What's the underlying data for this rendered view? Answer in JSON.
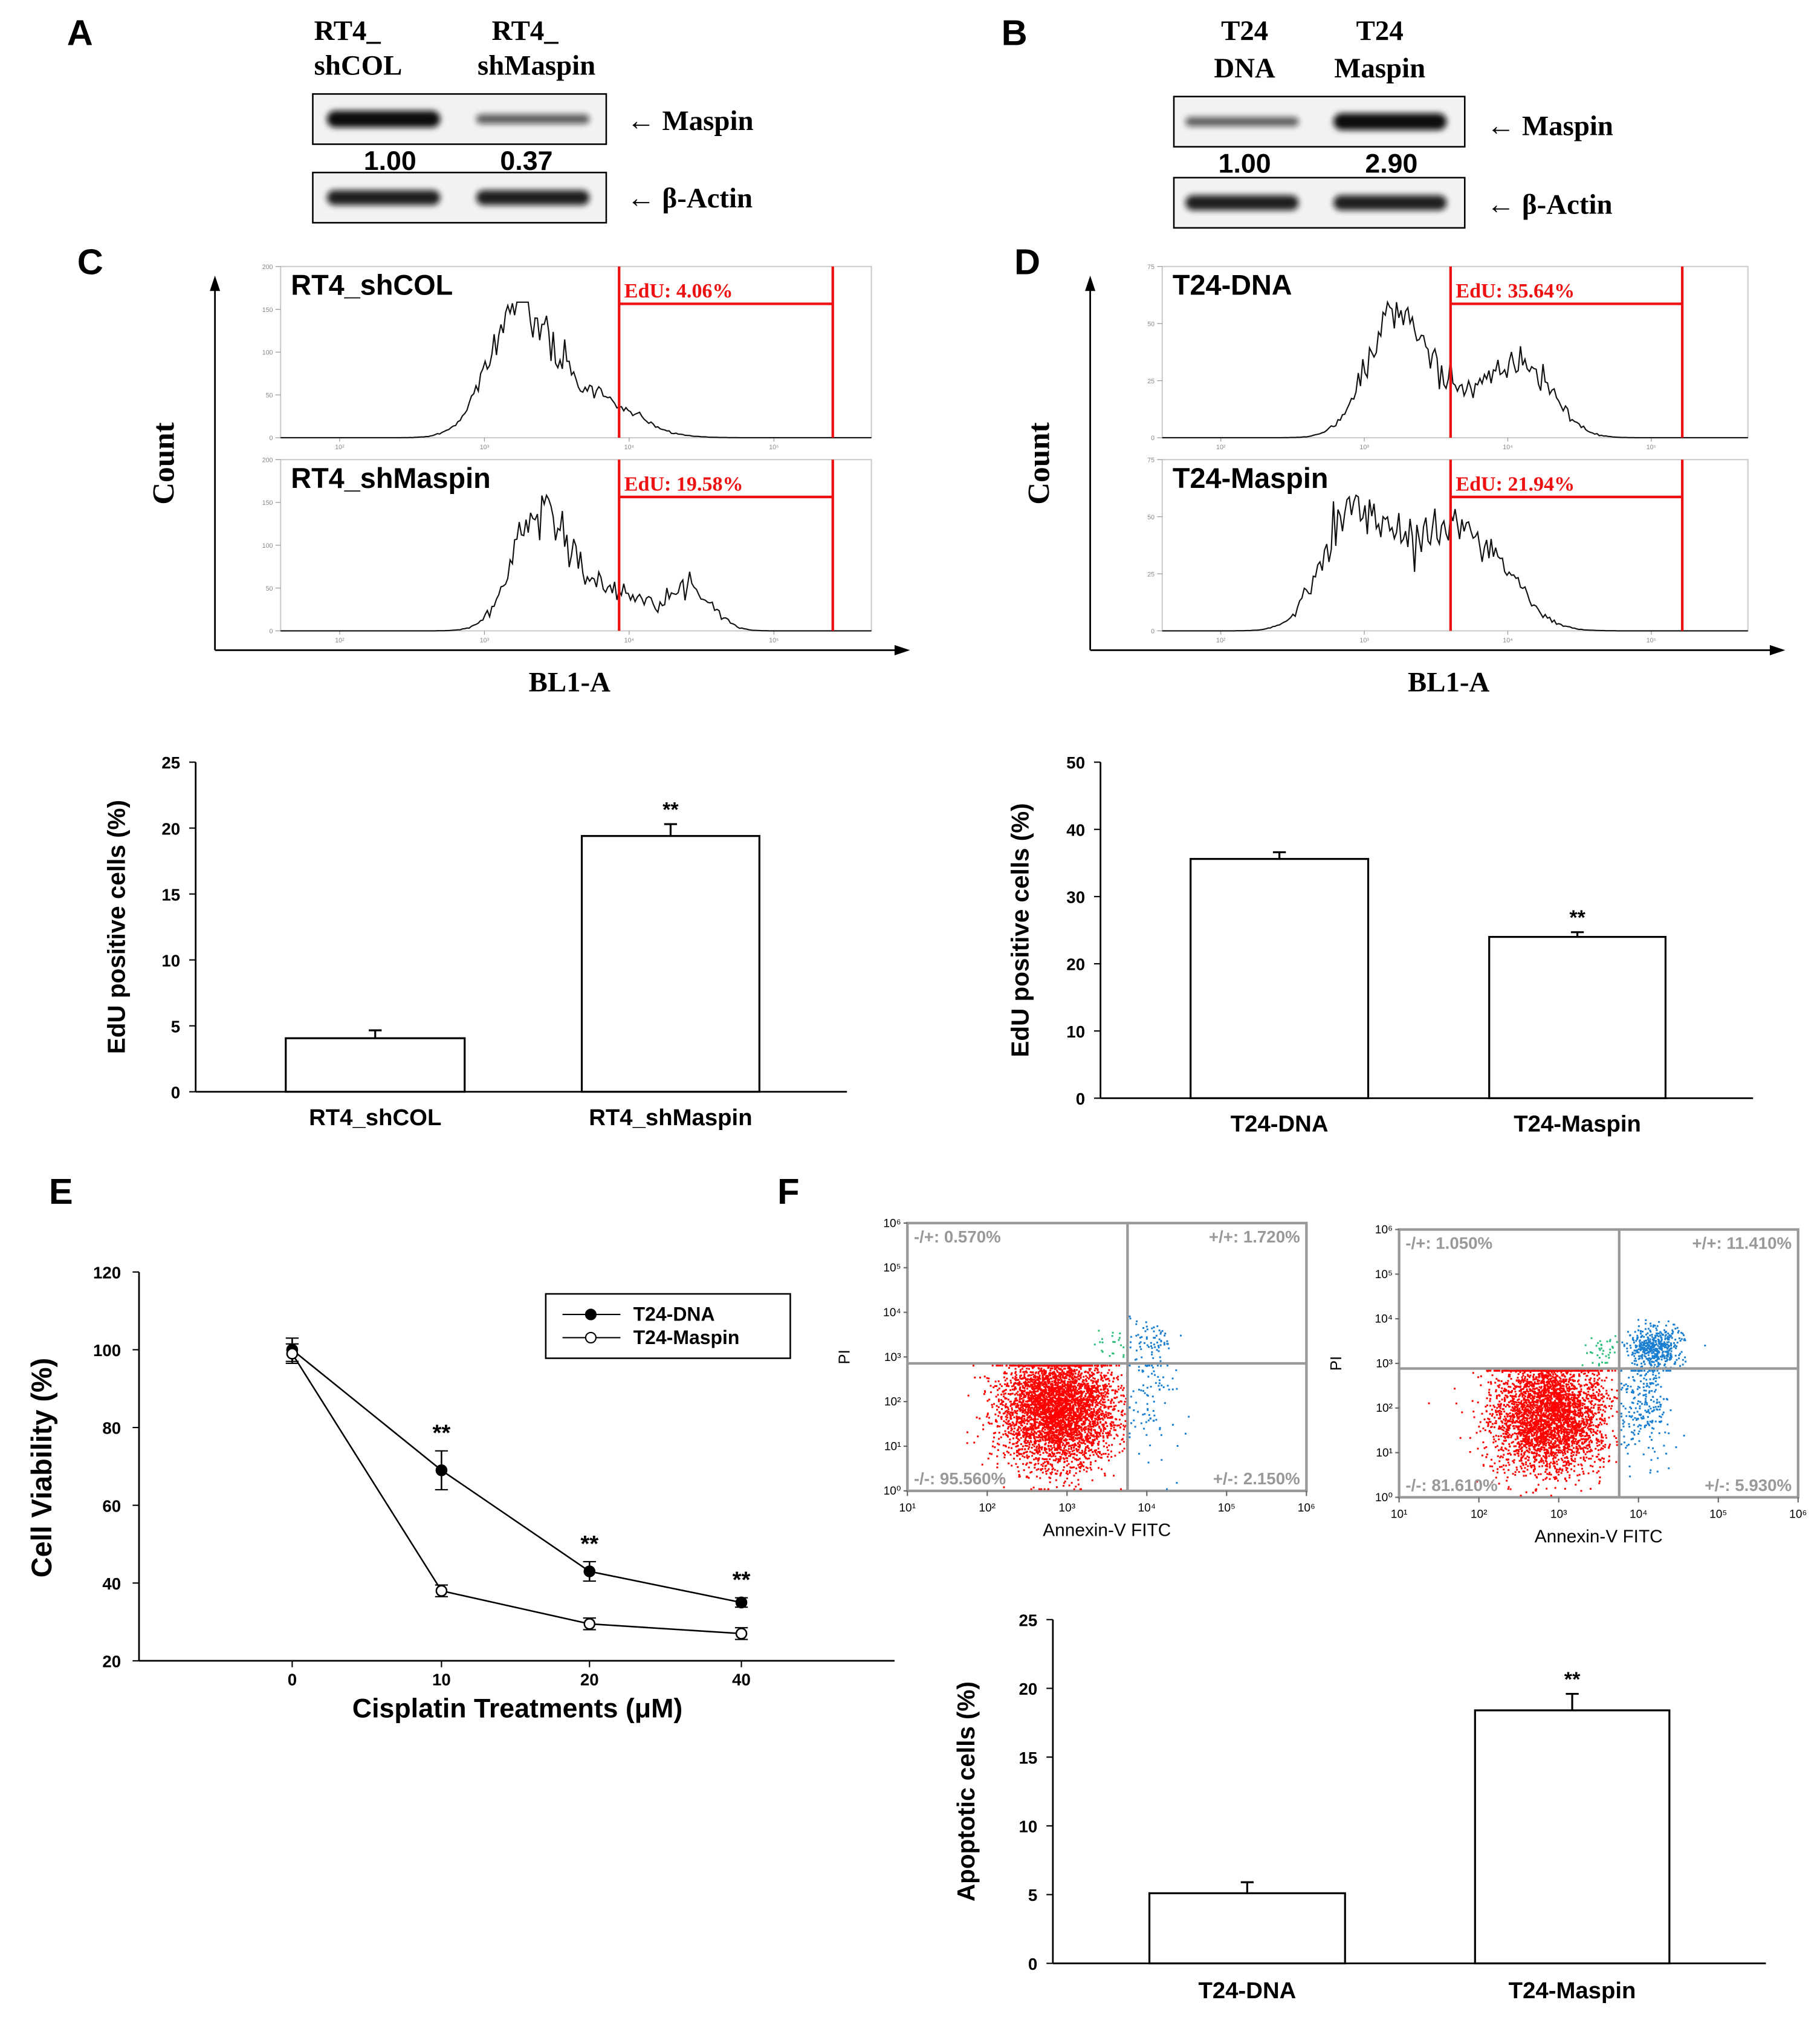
{
  "panel_labels": {
    "a": "A",
    "b": "B",
    "c": "C",
    "d": "D",
    "e": "E",
    "f": "F"
  },
  "western_a": {
    "lanes": [
      {
        "line1": "RT4_",
        "line2": "shCOL"
      },
      {
        "line1": "RT4_",
        "line2": "shMaspin"
      }
    ],
    "bands": [
      "← Maspin",
      "← β-Actin"
    ],
    "quant": [
      "1.00",
      "0.37"
    ],
    "maspin_intensity": [
      1.0,
      0.37
    ]
  },
  "western_b": {
    "lanes": [
      {
        "line1": "T24",
        "line2": "DNA"
      },
      {
        "line1": "T24",
        "line2": "Maspin"
      }
    ],
    "bands": [
      "← Maspin",
      "← β-Actin"
    ],
    "quant": [
      "1.00",
      "2.90"
    ],
    "maspin_intensity": [
      0.35,
      1.0
    ]
  },
  "chart_data": [
    {
      "type": "histogram",
      "id": "C-flow",
      "ylabel": "Count",
      "xlabel": "BL1-A",
      "subplots": [
        {
          "title": "RT4_shCOL",
          "gate_label": "EdU: 4.06%",
          "yticks": [
            "0",
            "50",
            "100",
            "150",
            "200"
          ],
          "xticks": [
            "10²",
            "10³",
            "10⁴",
            "10⁵"
          ]
        },
        {
          "title": "RT4_shMaspin",
          "gate_label": "EdU: 19.58%",
          "yticks": [
            "0",
            "50",
            "100",
            "150",
            "200"
          ],
          "xticks": [
            "10²",
            "10³",
            "10⁴",
            "10⁵"
          ]
        }
      ]
    },
    {
      "type": "histogram",
      "id": "D-flow",
      "ylabel": "Count",
      "xlabel": "BL1-A",
      "subplots": [
        {
          "title": "T24-DNA",
          "gate_label": "EdU: 35.64%",
          "yticks": [
            "0",
            "25",
            "50",
            "75"
          ],
          "xticks": [
            "10²",
            "10³",
            "10⁴",
            "10⁵"
          ]
        },
        {
          "title": "T24-Maspin",
          "gate_label": "EdU: 21.94%",
          "yticks": [
            "0",
            "25",
            "50",
            "75"
          ],
          "xticks": [
            "10²",
            "10³",
            "10⁴",
            "10⁵"
          ]
        }
      ]
    },
    {
      "type": "bar",
      "id": "C-bar",
      "categories": [
        "RT4_shCOL",
        "RT4_shMaspin"
      ],
      "values": [
        4.06,
        19.4
      ],
      "errors": [
        0.6,
        0.9
      ],
      "significance": [
        "",
        "**"
      ],
      "ylabel": "EdU positive cells (%)",
      "ylim": [
        0,
        25
      ],
      "yticks": [
        0,
        5,
        10,
        15,
        20,
        25
      ]
    },
    {
      "type": "bar",
      "id": "D-bar",
      "categories": [
        "T24-DNA",
        "T24-Maspin"
      ],
      "values": [
        35.6,
        24.0
      ],
      "errors": [
        1.0,
        0.7
      ],
      "significance": [
        "",
        "**"
      ],
      "ylabel": "EdU positive cells (%)",
      "ylim": [
        0,
        50
      ],
      "yticks": [
        0,
        10,
        20,
        30,
        40,
        50
      ]
    },
    {
      "type": "line",
      "id": "E-line",
      "x": [
        "0",
        "10",
        "20",
        "40"
      ],
      "xlabel": "Cisplatin Treatments (μM)",
      "ylabel": "Cell Viability (%)",
      "ylim": [
        20,
        120
      ],
      "yticks": [
        20,
        40,
        60,
        80,
        100,
        120
      ],
      "legend_position": "top-right",
      "series": [
        {
          "name": "T24-DNA",
          "marker": "filled-circle",
          "values": [
            100,
            69,
            43,
            35
          ],
          "errors": [
            3,
            5,
            2.5,
            1.2
          ]
        },
        {
          "name": "T24-Maspin",
          "marker": "open-circle",
          "values": [
            99,
            38,
            29.5,
            27
          ],
          "errors": [
            2.5,
            1.5,
            1.5,
            1.5
          ]
        }
      ],
      "significance": [
        "",
        "**",
        "**",
        "**"
      ]
    },
    {
      "type": "scatter",
      "id": "F-flow-DNA",
      "xlabel": "Annexin-V FITC",
      "ylabel": "PI",
      "xticks": [
        "10¹",
        "10²",
        "10³",
        "10⁴",
        "10⁵",
        "10⁶"
      ],
      "yticks": [
        "10⁰",
        "10¹",
        "10²",
        "10³",
        "10⁴",
        "10⁵",
        "10⁶"
      ],
      "quadrants": {
        "ul": "-/+: 0.570%",
        "ur": "+/+: 1.720%",
        "ll": "-/-: 95.560%",
        "lr": "+/-: 2.150%"
      },
      "quadrant_values": {
        "ul": 0.57,
        "ur": 1.72,
        "ll": 95.56,
        "lr": 2.15
      }
    },
    {
      "type": "scatter",
      "id": "F-flow-Maspin",
      "xlabel": "Annexin-V FITC",
      "ylabel": "PI",
      "xticks": [
        "10¹",
        "10²",
        "10³",
        "10⁴",
        "10⁵",
        "10⁶"
      ],
      "yticks": [
        "10⁰",
        "10¹",
        "10²",
        "10³",
        "10⁴",
        "10⁵",
        "10⁶"
      ],
      "quadrants": {
        "ul": "-/+: 1.050%",
        "ur": "+/+: 11.410%",
        "ll": "-/-: 81.610%",
        "lr": "+/-: 5.930%"
      },
      "quadrant_values": {
        "ul": 1.05,
        "ur": 11.41,
        "ll": 81.61,
        "lr": 5.93
      }
    },
    {
      "type": "bar",
      "id": "F-bar",
      "categories": [
        "T24-DNA",
        "T24-Maspin"
      ],
      "values": [
        5.1,
        18.4
      ],
      "errors": [
        0.8,
        1.2
      ],
      "significance": [
        "",
        "**"
      ],
      "ylabel": "Apoptotic cells (%)",
      "ylim": [
        0,
        25
      ],
      "yticks": [
        0,
        5,
        10,
        15,
        20,
        25
      ]
    }
  ],
  "colors": {
    "gate": "#ee1111",
    "live": "#ff0000",
    "apoptotic": "#1a7fd0",
    "necrotic": "#2dbf7a"
  }
}
